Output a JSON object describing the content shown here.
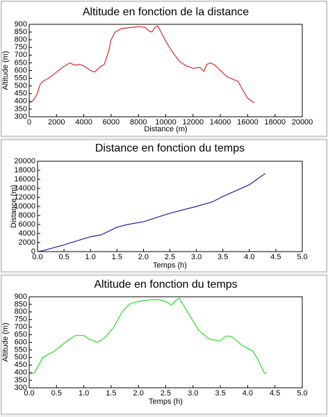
{
  "chart_data": [
    {
      "type": "line",
      "title": "Altitude en fonction de la distance",
      "xlabel": "Distance (m)",
      "ylabel": "Altitude (m)",
      "color": "#d62728",
      "x": [
        0,
        300,
        600,
        800,
        1000,
        1500,
        2000,
        2500,
        3000,
        3300,
        3700,
        4000,
        4500,
        4800,
        5200,
        5500,
        5800,
        6000,
        6300,
        6700,
        7000,
        7500,
        8000,
        8500,
        8800,
        9000,
        9200,
        9400,
        9600,
        10000,
        10500,
        11000,
        11500,
        12000,
        12500,
        12800,
        13000,
        13300,
        13600,
        14000,
        14500,
        15000,
        15300,
        15600,
        16000,
        16500
      ],
      "values": [
        390,
        405,
        450,
        510,
        530,
        555,
        590,
        625,
        650,
        635,
        640,
        630,
        600,
        590,
        625,
        640,
        720,
        800,
        850,
        870,
        875,
        880,
        885,
        880,
        855,
        850,
        880,
        890,
        860,
        790,
        720,
        660,
        630,
        615,
        620,
        595,
        640,
        650,
        635,
        600,
        560,
        540,
        530,
        480,
        420,
        390
      ],
      "xlim": [
        0,
        20000
      ],
      "xticks": [
        0,
        2000,
        4000,
        6000,
        8000,
        10000,
        12000,
        14000,
        16000,
        18000,
        20000
      ],
      "ylim": [
        300,
        900
      ],
      "yticks": [
        300,
        350,
        400,
        450,
        500,
        550,
        600,
        650,
        700,
        750,
        800,
        850,
        900
      ]
    },
    {
      "type": "line",
      "title": "Distance en fonction du temps",
      "xlabel": "Temps (h)",
      "ylabel": "Distance (m)",
      "color": "#1f1f9f",
      "x": [
        0,
        0.1,
        0.5,
        1.0,
        1.2,
        1.5,
        1.7,
        2.0,
        2.5,
        3.0,
        3.3,
        3.5,
        4.0,
        4.3
      ],
      "values": [
        0,
        200,
        1500,
        3300,
        3700,
        5400,
        6000,
        6600,
        8500,
        10000,
        11000,
        12200,
        14800,
        17300
      ],
      "xlim": [
        0,
        5
      ],
      "xticks": [
        {
          "value": 0,
          "label": "0.0"
        },
        0.5,
        {
          "value": 1,
          "label": "1.0"
        },
        1.5,
        {
          "value": 2,
          "label": "2.0"
        },
        2.5,
        {
          "value": 3,
          "label": "3.0"
        },
        3.5,
        {
          "value": 4,
          "label": "4.0"
        },
        4.5,
        {
          "value": 5,
          "label": "5.0"
        }
      ],
      "ylim": [
        0,
        20000
      ],
      "yticks": [
        0,
        2000,
        4000,
        6000,
        8000,
        10000,
        12000,
        14000,
        16000,
        18000,
        20000
      ]
    },
    {
      "type": "line",
      "title": "Altitude en fonction du temps",
      "xlabel": "Temps (h)",
      "ylabel": "Altitude (m)",
      "color": "#22dd22",
      "x": [
        0,
        0.1,
        0.25,
        0.45,
        0.7,
        0.85,
        1.0,
        1.1,
        1.25,
        1.4,
        1.55,
        1.7,
        1.85,
        2.0,
        2.2,
        2.4,
        2.55,
        2.6,
        2.7,
        2.75,
        2.9,
        3.1,
        3.3,
        3.5,
        3.6,
        3.7,
        3.9,
        4.0,
        4.1,
        4.2,
        4.3,
        4.35
      ],
      "values": [
        390,
        400,
        500,
        540,
        610,
        645,
        645,
        620,
        600,
        635,
        700,
        800,
        855,
        870,
        880,
        880,
        860,
        845,
        880,
        890,
        800,
        680,
        620,
        610,
        640,
        640,
        580,
        560,
        540,
        480,
        400,
        395
      ],
      "xlim": [
        0,
        5
      ],
      "xticks": [
        {
          "value": 0,
          "label": "0.0"
        },
        0.5,
        {
          "value": 1,
          "label": "1.0"
        },
        1.5,
        {
          "value": 2,
          "label": "2.0"
        },
        2.5,
        {
          "value": 3,
          "label": "3.0"
        },
        3.5,
        {
          "value": 4,
          "label": "4.0"
        },
        4.5,
        {
          "value": 5,
          "label": "5.0"
        }
      ],
      "ylim": [
        300,
        900
      ],
      "yticks": [
        300,
        350,
        400,
        450,
        500,
        550,
        600,
        650,
        700,
        750,
        800,
        850,
        900
      ]
    }
  ]
}
